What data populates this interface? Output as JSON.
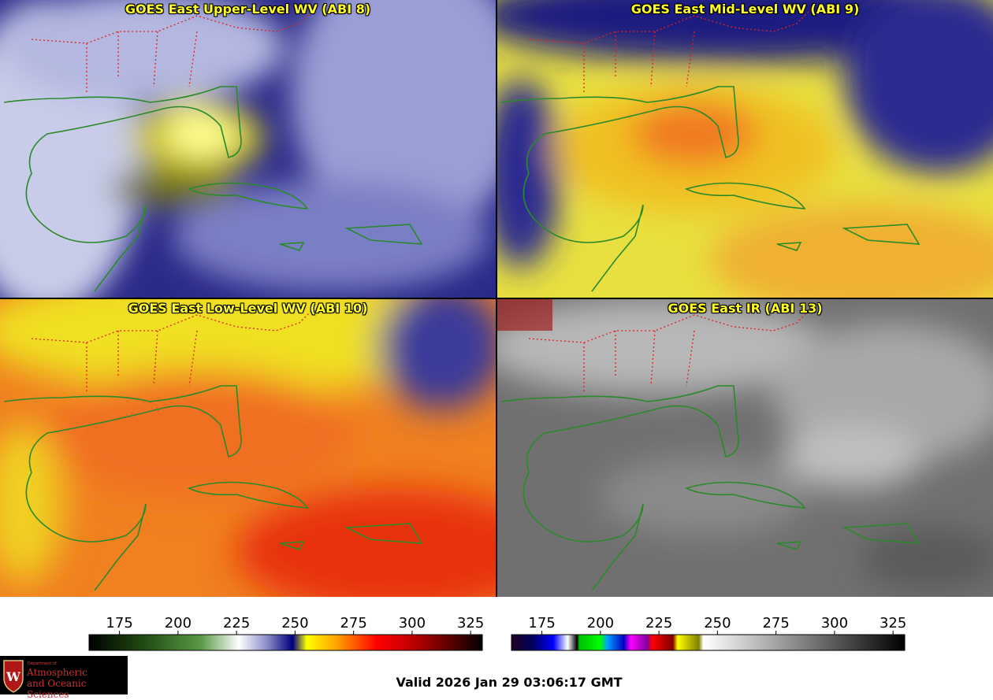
{
  "panels": [
    {
      "title": "GOES East Upper-Level WV (ABI 8)"
    },
    {
      "title": "GOES East Mid-Level WV (ABI 9)"
    },
    {
      "title": "GOES East Low-Level WV (ABI 10)"
    },
    {
      "title": "GOES East IR (ABI 13)"
    }
  ],
  "colorbars": {
    "wv": {
      "ticks": [
        "175",
        "200",
        "225",
        "250",
        "275",
        "300",
        "325"
      ],
      "tick_values": [
        175,
        200,
        225,
        250,
        275,
        300,
        325
      ],
      "range": [
        162,
        330
      ],
      "stops": [
        {
          "v": 162,
          "c": "#000000"
        },
        {
          "v": 185,
          "c": "#1f4a12"
        },
        {
          "v": 210,
          "c": "#5a9a48"
        },
        {
          "v": 226,
          "c": "#ffffff"
        },
        {
          "v": 238,
          "c": "#8c8cc8"
        },
        {
          "v": 249,
          "c": "#000080"
        },
        {
          "v": 255,
          "c": "#ffff00"
        },
        {
          "v": 268,
          "c": "#ffa000"
        },
        {
          "v": 285,
          "c": "#ff0000"
        },
        {
          "v": 300,
          "c": "#c00000"
        },
        {
          "v": 318,
          "c": "#500000"
        },
        {
          "v": 330,
          "c": "#000000"
        }
      ]
    },
    "ir": {
      "ticks": [
        "175",
        "200",
        "225",
        "250",
        "275",
        "300",
        "325"
      ],
      "tick_values": [
        175,
        200,
        225,
        250,
        275,
        300,
        325
      ],
      "range": [
        162,
        330
      ],
      "stops": [
        {
          "v": 162,
          "c": "#200020"
        },
        {
          "v": 171,
          "c": "#000060"
        },
        {
          "v": 180,
          "c": "#0000ff"
        },
        {
          "v": 186,
          "c": "#ffffff"
        },
        {
          "v": 190,
          "c": "#000000"
        },
        {
          "v": 191,
          "c": "#00c000"
        },
        {
          "v": 200,
          "c": "#00ff00"
        },
        {
          "v": 203,
          "c": "#00a0ff"
        },
        {
          "v": 210,
          "c": "#0000c0"
        },
        {
          "v": 213,
          "c": "#ff00ff"
        },
        {
          "v": 220,
          "c": "#8000a0"
        },
        {
          "v": 222,
          "c": "#ff0000"
        },
        {
          "v": 231,
          "c": "#800000"
        },
        {
          "v": 233,
          "c": "#ffff00"
        },
        {
          "v": 242,
          "c": "#808000"
        },
        {
          "v": 244,
          "c": "#ffffff"
        },
        {
          "v": 330,
          "c": "#000000"
        }
      ]
    }
  },
  "logo": {
    "line1": "Department of",
    "line2": "Atmospheric",
    "line3": "and Oceanic Sciences",
    "icon": "uw-crest-icon"
  },
  "valid_time": "Valid 2026 Jan 29 03:06:17 GMT"
}
